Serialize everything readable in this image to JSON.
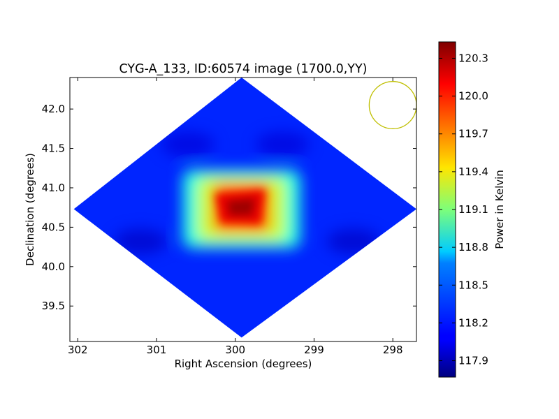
{
  "chart_data": {
    "type": "heatmap",
    "title": "CYG-A_133, ID:60574 image (1700.0,YY)",
    "xlabel": "Right Ascension (degrees)",
    "ylabel": "Declination (degrees)",
    "x_axis_reversed": true,
    "xlim": [
      302.1,
      297.7
    ],
    "ylim": [
      39.05,
      42.4
    ],
    "x_ticks": [
      {
        "value": 302,
        "label": "302"
      },
      {
        "value": 301,
        "label": "301"
      },
      {
        "value": 300,
        "label": "300"
      },
      {
        "value": 299,
        "label": "299"
      },
      {
        "value": 298,
        "label": "298"
      }
    ],
    "y_ticks": [
      {
        "value": 39.5,
        "label": "39.5"
      },
      {
        "value": 40.0,
        "label": "40.0"
      },
      {
        "value": 40.5,
        "label": "40.5"
      },
      {
        "value": 41.0,
        "label": "41.0"
      },
      {
        "value": 41.5,
        "label": "41.5"
      },
      {
        "value": 42.0,
        "label": "42.0"
      }
    ],
    "colorbar": {
      "label": "Power in Kelvin",
      "colormap": "jet",
      "range": [
        117.77,
        120.43
      ],
      "ticks": [
        {
          "value": 117.9,
          "label": "117.9"
        },
        {
          "value": 118.2,
          "label": "118.2"
        },
        {
          "value": 118.5,
          "label": "118.5"
        },
        {
          "value": 118.8,
          "label": "118.8"
        },
        {
          "value": 119.1,
          "label": "119.1"
        },
        {
          "value": 119.4,
          "label": "119.4"
        },
        {
          "value": 119.7,
          "label": "119.7"
        },
        {
          "value": 120.0,
          "label": "120.0"
        },
        {
          "value": 120.3,
          "label": "120.3"
        }
      ]
    },
    "image": {
      "shape": "diamond",
      "center": {
        "ra": 299.92,
        "dec": 40.73
      },
      "extent": {
        "ra": [
          302.05,
          297.7
        ],
        "dec": [
          39.1,
          42.4
        ]
      },
      "background_value": 118.2,
      "peak_value": 120.4,
      "features": [
        {
          "kind": "bright-core",
          "center": {
            "ra": 299.92,
            "dec": 40.75
          },
          "peak": 120.4,
          "half_width_ra": 0.35,
          "half_width_dec": 0.3
        },
        {
          "kind": "halo",
          "center": {
            "ra": 299.92,
            "dec": 40.73
          },
          "level": 118.85,
          "half_width_ra": 0.75,
          "half_width_dec": 0.5
        },
        {
          "kind": "dim-patch",
          "center": {
            "ra": 301.2,
            "dec": 40.32
          },
          "level": 117.95
        },
        {
          "kind": "dim-patch",
          "center": {
            "ra": 298.5,
            "dec": 40.32
          },
          "level": 117.95
        },
        {
          "kind": "dim-patch",
          "center": {
            "ra": 300.6,
            "dec": 41.55
          },
          "level": 118.0
        },
        {
          "kind": "dim-patch",
          "center": {
            "ra": 299.4,
            "dec": 41.55
          },
          "level": 118.0
        }
      ]
    },
    "beam": {
      "ra": 298.0,
      "dec": 42.05,
      "radius_ra_deg": 0.3,
      "color": "#bfbf00"
    },
    "grid": false,
    "legend": "none"
  }
}
